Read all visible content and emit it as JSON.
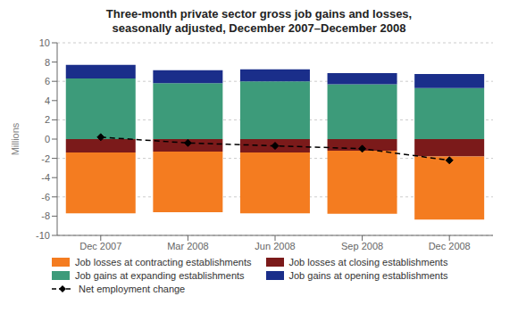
{
  "chart_data": {
    "type": "bar",
    "title": "Three-month private sector gross job gains and losses,",
    "subtitle": "seasonally adjusted, December 2007–December 2008",
    "ylabel": "Millions",
    "categories": [
      "Dec 2007",
      "Mar 2008",
      "Jun 2008",
      "Sep 2008",
      "Dec 2008"
    ],
    "stacked": true,
    "grid": true,
    "legend": "bottom",
    "ylim": [
      -10,
      10
    ],
    "yticks": [
      -10,
      -8,
      -6,
      -4,
      -2,
      0,
      2,
      4,
      6,
      8,
      10
    ],
    "series": [
      {
        "name": "Job losses at contracting establishments",
        "color": "#f47c20",
        "values": [
          -6.3,
          -6.3,
          -6.3,
          -6.55,
          -6.55
        ]
      },
      {
        "name": "Job losses at closing establishments",
        "color": "#7b1a1a",
        "values": [
          -1.4,
          -1.3,
          -1.4,
          -1.2,
          -1.8
        ]
      },
      {
        "name": "Job gains at expanding establishments",
        "color": "#3d9b7a",
        "values": [
          6.3,
          5.8,
          6.0,
          5.7,
          5.3
        ]
      },
      {
        "name": "Job gains at opening establishments",
        "color": "#1a2e8a",
        "values": [
          1.4,
          1.35,
          1.25,
          1.15,
          1.45
        ]
      },
      {
        "name": "Net employment change",
        "type": "line",
        "color": "#000000",
        "line_style": "dashed",
        "marker": "diamond",
        "values": [
          0.2,
          -0.4,
          -0.7,
          -1.0,
          -2.2
        ]
      }
    ]
  }
}
